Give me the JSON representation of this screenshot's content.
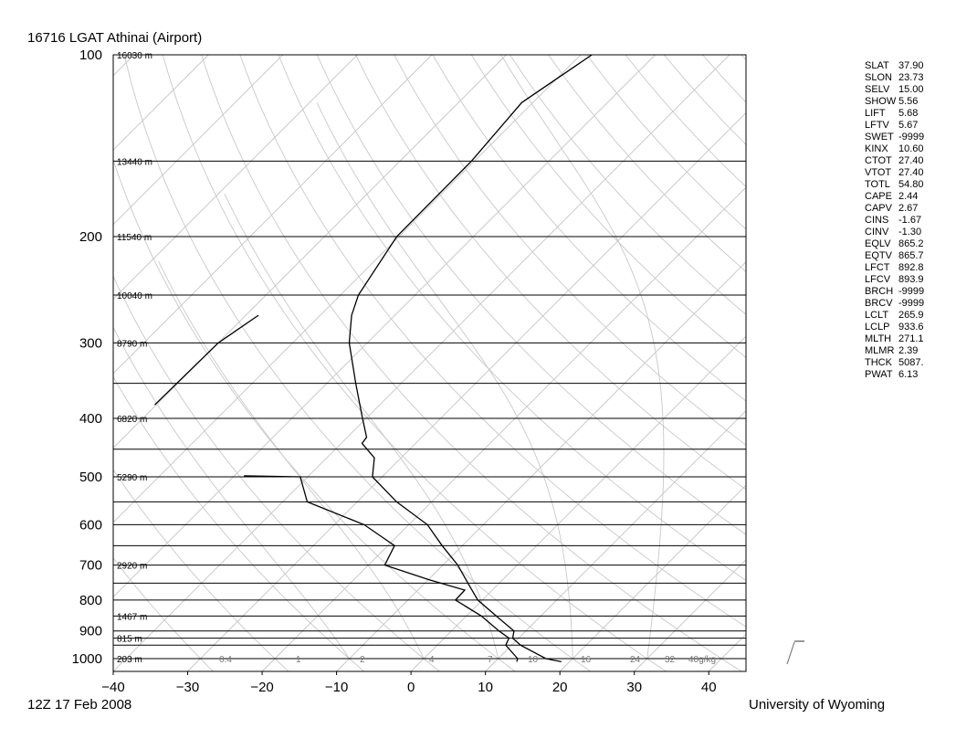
{
  "header": {
    "station_title": "16716 LGAT Athinai (Airport)",
    "valid_time": "12Z 17 Feb 2008",
    "source": "University of Wyoming"
  },
  "indices": [
    {
      "key": "SLAT",
      "value": "37.90"
    },
    {
      "key": "SLON",
      "value": "23.73"
    },
    {
      "key": "SELV",
      "value": "15.00"
    },
    {
      "key": "SHOW",
      "value": "5.56"
    },
    {
      "key": "LIFT",
      "value": "5.68"
    },
    {
      "key": "LFTV",
      "value": "5.67"
    },
    {
      "key": "SWET",
      "value": "-9999"
    },
    {
      "key": "KINX",
      "value": "10.60"
    },
    {
      "key": "CTOT",
      "value": "27.40"
    },
    {
      "key": "VTOT",
      "value": "27.40"
    },
    {
      "key": "TOTL",
      "value": "54.80"
    },
    {
      "key": "CAPE",
      "value": "2.44"
    },
    {
      "key": "CAPV",
      "value": "2.67"
    },
    {
      "key": "CINS",
      "value": "-1.67"
    },
    {
      "key": "CINV",
      "value": "-1.30"
    },
    {
      "key": "EQLV",
      "value": "865.2"
    },
    {
      "key": "EQTV",
      "value": "865.7"
    },
    {
      "key": "LFCT",
      "value": "892.8"
    },
    {
      "key": "LFCV",
      "value": "893.9"
    },
    {
      "key": "BRCH",
      "value": "-9999"
    },
    {
      "key": "BRCV",
      "value": "-9999"
    },
    {
      "key": "LCLT",
      "value": "265.9"
    },
    {
      "key": "LCLP",
      "value": "933.6"
    },
    {
      "key": "MLTH",
      "value": "271.1"
    },
    {
      "key": "MLMR",
      "value": "2.39"
    },
    {
      "key": "THCK",
      "value": "5087."
    },
    {
      "key": "PWAT",
      "value": "6.13"
    }
  ],
  "chart_data": {
    "type": "line",
    "chart_kind": "skew-T log-P sounding",
    "x_axis": {
      "range": [
        -40,
        45
      ],
      "ticks": [
        -40,
        -30,
        -20,
        -10,
        0,
        10,
        20,
        30,
        40
      ],
      "tick_labels": [
        "−40",
        "−30",
        "−20",
        "−10",
        "0",
        "10",
        "20",
        "30",
        "40"
      ]
    },
    "y_axis": {
      "scale": "log",
      "range": [
        1050,
        100
      ],
      "reversed": true,
      "ticks": [
        100,
        200,
        300,
        400,
        500,
        600,
        700,
        800,
        900,
        1000
      ]
    },
    "isobars": [
      100,
      150,
      200,
      250,
      300,
      350,
      400,
      450,
      500,
      550,
      600,
      650,
      700,
      750,
      800,
      850,
      900,
      925,
      950,
      1000
    ],
    "height_labels": [
      {
        "p": 100,
        "text": "16030 m"
      },
      {
        "p": 150,
        "text": "13440 m"
      },
      {
        "p": 200,
        "text": "11540 m"
      },
      {
        "p": 250,
        "text": "10040 m"
      },
      {
        "p": 300,
        "text": "8790 m"
      },
      {
        "p": 400,
        "text": "6820 m"
      },
      {
        "p": 500,
        "text": "5290 m"
      },
      {
        "p": 700,
        "text": "2920 m"
      },
      {
        "p": 850,
        "text": "1467 m"
      },
      {
        "p": 925,
        "text": "815 m"
      },
      {
        "p": 1000,
        "text": "203 m"
      }
    ],
    "mixing_ratio_labels": [
      "0.4",
      "1",
      "2",
      "4",
      "7",
      "10",
      "16",
      "24",
      "32",
      "40g/kg"
    ],
    "series": [
      {
        "values": [
          {
            "p": 1012,
            "t": 18.9
          },
          {
            "p": 1000,
            "t": 16.4
          },
          {
            "p": 950,
            "t": 11.2
          },
          {
            "p": 925,
            "t": 9.2
          },
          {
            "p": 900,
            "t": 8.4
          },
          {
            "p": 850,
            "t": 4.0
          },
          {
            "p": 800,
            "t": -0.6
          },
          {
            "p": 750,
            "t": -4.2
          },
          {
            "p": 700,
            "t": -8.0
          },
          {
            "p": 650,
            "t": -12.7
          },
          {
            "p": 600,
            "t": -17.5
          },
          {
            "p": 550,
            "t": -24.7
          },
          {
            "p": 500,
            "t": -31.3
          },
          {
            "p": 465,
            "t": -33.6
          },
          {
            "p": 440,
            "t": -37.2
          },
          {
            "p": 430,
            "t": -37.4
          },
          {
            "p": 400,
            "t": -40.5
          },
          {
            "p": 350,
            "t": -46.1
          },
          {
            "p": 300,
            "t": -52.4
          },
          {
            "p": 290,
            "t": -53.5
          },
          {
            "p": 270,
            "t": -55.8
          },
          {
            "p": 250,
            "t": -57.6
          },
          {
            "p": 200,
            "t": -60.3
          },
          {
            "p": 150,
            "t": -60.4
          },
          {
            "p": 120,
            "t": -61.5
          },
          {
            "p": 100,
            "t": -58.5
          }
        ]
      },
      {
        "values": [
          {
            "p": 1012,
            "t": 12.9
          },
          {
            "p": 1000,
            "t": 12.6
          },
          {
            "p": 950,
            "t": 9.2
          },
          {
            "p": 925,
            "t": 8.7
          },
          {
            "p": 900,
            "t": 6.4
          },
          {
            "p": 850,
            "t": 2.0
          },
          {
            "p": 800,
            "t": -3.6
          },
          {
            "p": 770,
            "t": -3.7
          },
          {
            "p": 740,
            "t": -9.9
          },
          {
            "p": 700,
            "t": -17.8
          },
          {
            "p": 650,
            "t": -19.1
          },
          {
            "p": 600,
            "t": -26.0
          },
          {
            "p": 550,
            "t": -36.7
          },
          {
            "p": 500,
            "t": -41.0
          },
          {
            "p": 498,
            "t": -48.7
          }
        ]
      },
      {
        "values": [
          {
            "p": 380,
            "t": -70.2
          },
          {
            "p": 300,
            "t": -70.0
          },
          {
            "p": 270,
            "t": -68.3
          }
        ]
      }
    ]
  }
}
